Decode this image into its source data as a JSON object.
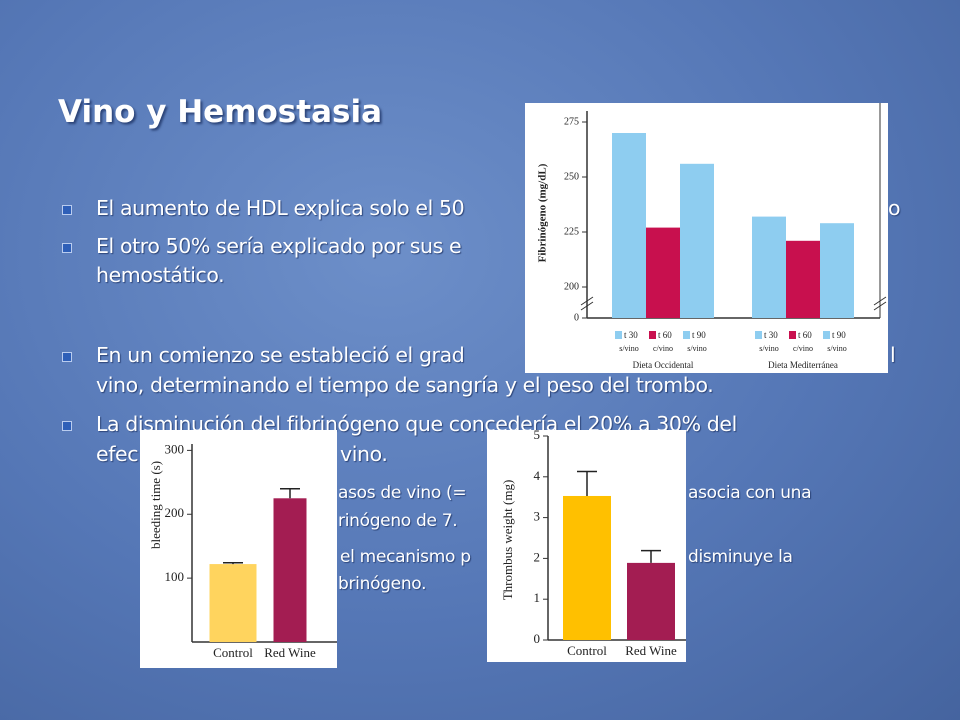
{
  "title": "Vino y Hemostasia",
  "bullets": [
    {
      "parts": [
        "El aumento de HDL explica solo el 50",
        "o"
      ]
    },
    {
      "parts": [
        "El otro 50% sería explicado por sus e",
        "hemostático."
      ]
    },
    {
      "parts": [
        "En un comienzo se estableció el grad",
        "l",
        "vino, determinando el tiempo de sangría y el peso del trombo."
      ]
    },
    {
      "parts": [
        "La disminución del fibrinógeno que concedería el 20% a 30% del",
        "efec",
        "vino."
      ]
    }
  ],
  "sub_bullets": [
    {
      "parts": [
        "asos de vino (=",
        "asocia con una",
        "rinógeno de 7."
      ]
    },
    {
      "parts": [
        "el mecanismo p",
        "disminuye la",
        "brinógeno."
      ]
    }
  ],
  "chart_data": [
    {
      "type": "bar",
      "ylabel": "Fibrinógeno (mg/dL)",
      "categories": [
        "Dieta Occidental",
        "Dieta Mediterránea"
      ],
      "series": [
        {
          "name": "t 30",
          "sublabel": "s/vino",
          "color": "#8ecdf0",
          "values": [
            270,
            232
          ]
        },
        {
          "name": "t 60",
          "sublabel": "c/vino",
          "color": "#c8104e",
          "values": [
            227,
            221
          ]
        },
        {
          "name": "t 90",
          "sublabel": "s/vino",
          "color": "#8ecdf0",
          "values": [
            256,
            229
          ]
        }
      ],
      "ylim": [
        0,
        280
      ],
      "yticks": [
        0,
        200,
        225,
        250,
        275
      ],
      "axis_break": [
        0,
        200
      ]
    },
    {
      "type": "bar",
      "ylabel": "bleeding time (s)",
      "categories": [
        "Control",
        "Red Wine"
      ],
      "values": [
        122,
        225
      ],
      "errors": [
        2,
        15
      ],
      "colors": [
        "#ffd45e",
        "#a31d52"
      ],
      "ylim": [
        0,
        310
      ],
      "yticks": [
        100,
        200,
        300
      ]
    },
    {
      "type": "bar",
      "ylabel": "Thrombus weight (mg)",
      "categories": [
        "Control",
        "Red Wine"
      ],
      "values": [
        3.53,
        1.89
      ],
      "errors": [
        0.6,
        0.3
      ],
      "colors": [
        "#ffc000",
        "#a31d52"
      ],
      "ylim": [
        0,
        5
      ],
      "yticks": [
        0,
        1,
        2,
        3,
        4,
        5
      ]
    }
  ]
}
